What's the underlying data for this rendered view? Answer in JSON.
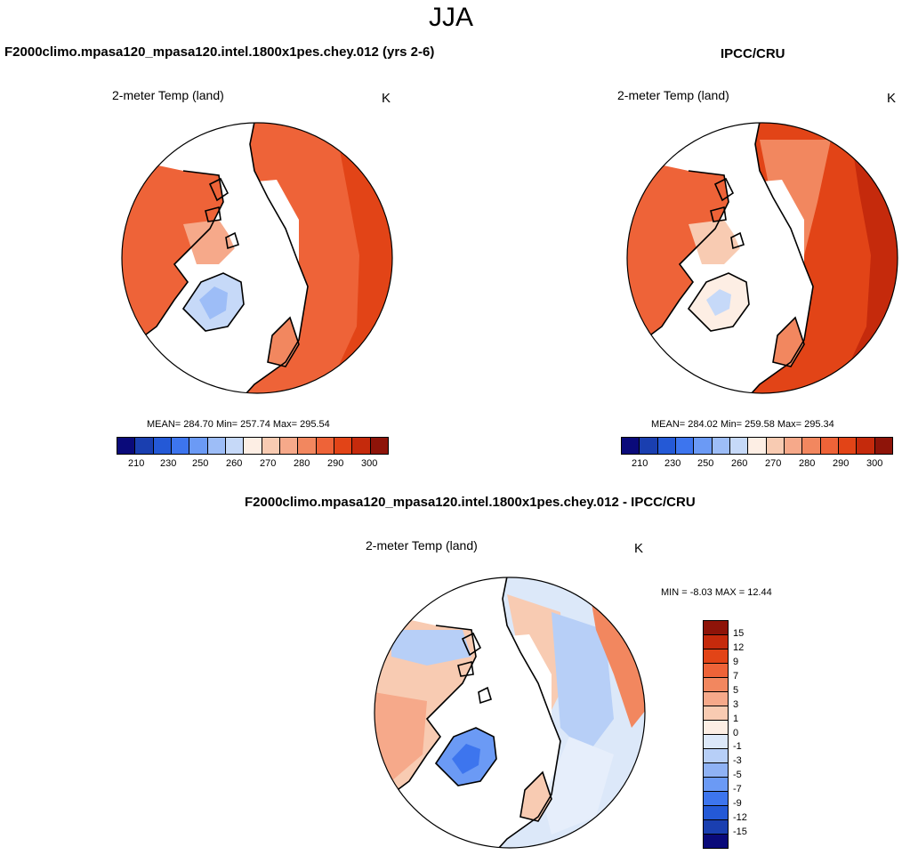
{
  "figure": {
    "season": "JJA",
    "units": "K",
    "panel_title": "2-meter Temp (land)"
  },
  "panels": [
    {
      "case": "F2000climo.mpasa120_mpasa120.intel.1800x1pes.chey.012 (yrs 2-6)",
      "stats": "MEAN= 284.70  Min= 257.74  Max= 295.54"
    },
    {
      "case": "IPCC/CRU",
      "stats": "MEAN= 284.02  Min= 259.58  Max= 295.34"
    },
    {
      "case": "F2000climo.mpasa120_mpasa120.intel.1800x1pes.chey.012 - IPCC/CRU",
      "stats": "MIN =  -8.03 MAX =  12.44"
    }
  ],
  "chart_data": [
    {
      "type": "heatmap",
      "title": "2-meter Temp (land)",
      "units": "K",
      "projection": "north polar stereographic",
      "mean": 284.7,
      "min": 257.74,
      "max": 295.54,
      "levels": [
        "210",
        "230",
        "250",
        "260",
        "270",
        "280",
        "290",
        "300"
      ],
      "colors": [
        "#0a0a7a",
        "#1a3fb0",
        "#2459d6",
        "#3d75ee",
        "#6b9af5",
        "#9dbdf7",
        "#c6d9f8",
        "#fdeee4",
        "#f8cbb2",
        "#f6a98a",
        "#f2875f",
        "#ee6338",
        "#e24417",
        "#c52a0c",
        "#8e1409"
      ]
    },
    {
      "type": "heatmap",
      "title": "2-meter Temp (land)",
      "units": "K",
      "projection": "north polar stereographic",
      "mean": 284.02,
      "min": 259.58,
      "max": 295.34,
      "levels": [
        "210",
        "230",
        "250",
        "260",
        "270",
        "280",
        "290",
        "300"
      ],
      "colors": [
        "#0a0a7a",
        "#1a3fb0",
        "#2459d6",
        "#3d75ee",
        "#6b9af5",
        "#9dbdf7",
        "#c6d9f8",
        "#fdeee4",
        "#f8cbb2",
        "#f6a98a",
        "#f2875f",
        "#ee6338",
        "#e24417",
        "#c52a0c",
        "#8e1409"
      ]
    },
    {
      "type": "heatmap",
      "title": "2-meter Temp (land)",
      "units": "K",
      "projection": "north polar stereographic",
      "min": -8.03,
      "max": 12.44,
      "levels": [
        "15",
        "12",
        "9",
        "7",
        "5",
        "3",
        "1",
        "0",
        "-1",
        "-3",
        "-5",
        "-7",
        "-9",
        "-12",
        "-15"
      ],
      "colors": [
        "#8e1409",
        "#c52a0c",
        "#e24417",
        "#ee6338",
        "#f2875f",
        "#f6a98a",
        "#f8cbb2",
        "#fdeee4",
        "#dce8f9",
        "#b7cff7",
        "#8fb2f4",
        "#6b9af5",
        "#3d75ee",
        "#2459d6",
        "#1a3fb0",
        "#0a0a7a"
      ]
    }
  ]
}
